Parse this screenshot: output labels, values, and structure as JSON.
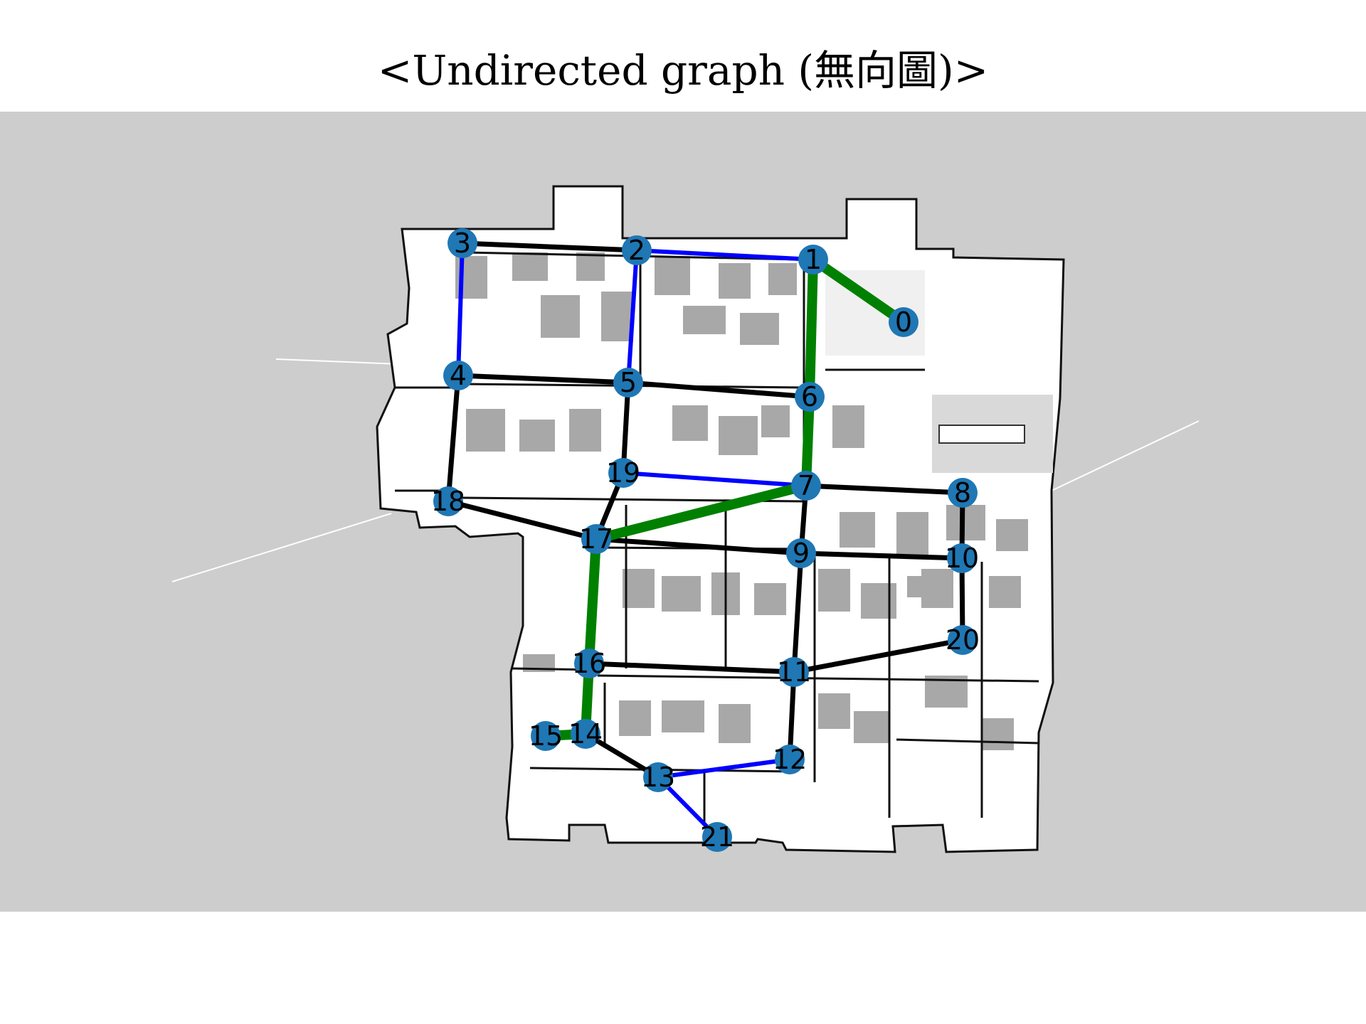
{
  "title": "<Undirected graph (無向圖)>",
  "colors": {
    "background": "#cdcdcd",
    "map_free": "#ffffff",
    "map_obstacle": "#a8a8a8",
    "map_wall": "#000000",
    "node": "#1f77b4",
    "edge_default": "#000000",
    "edge_blue": "#0000ff",
    "edge_path": "#008000"
  },
  "nodes": [
    {
      "id": "0"
    },
    {
      "id": "1"
    },
    {
      "id": "2"
    },
    {
      "id": "3"
    },
    {
      "id": "4"
    },
    {
      "id": "5"
    },
    {
      "id": "6"
    },
    {
      "id": "7"
    },
    {
      "id": "8"
    },
    {
      "id": "9"
    },
    {
      "id": "10"
    },
    {
      "id": "11"
    },
    {
      "id": "12"
    },
    {
      "id": "13"
    },
    {
      "id": "14"
    },
    {
      "id": "15"
    },
    {
      "id": "16"
    },
    {
      "id": "17"
    },
    {
      "id": "18"
    },
    {
      "id": "19"
    },
    {
      "id": "20"
    },
    {
      "id": "21"
    }
  ],
  "edges": [
    {
      "from": "3",
      "to": "2",
      "kind": "default"
    },
    {
      "from": "2",
      "to": "1",
      "kind": "blue"
    },
    {
      "from": "3",
      "to": "4",
      "kind": "blue"
    },
    {
      "from": "2",
      "to": "5",
      "kind": "blue"
    },
    {
      "from": "4",
      "to": "5",
      "kind": "default"
    },
    {
      "from": "5",
      "to": "6",
      "kind": "default"
    },
    {
      "from": "4",
      "to": "18",
      "kind": "default"
    },
    {
      "from": "5",
      "to": "19",
      "kind": "default"
    },
    {
      "from": "19",
      "to": "7",
      "kind": "blue"
    },
    {
      "from": "19",
      "to": "17",
      "kind": "default"
    },
    {
      "from": "18",
      "to": "17",
      "kind": "default"
    },
    {
      "from": "7",
      "to": "8",
      "kind": "default"
    },
    {
      "from": "7",
      "to": "9",
      "kind": "default"
    },
    {
      "from": "17",
      "to": "9",
      "kind": "default"
    },
    {
      "from": "9",
      "to": "10",
      "kind": "default"
    },
    {
      "from": "8",
      "to": "10",
      "kind": "default"
    },
    {
      "from": "10",
      "to": "20",
      "kind": "default"
    },
    {
      "from": "9",
      "to": "11",
      "kind": "default"
    },
    {
      "from": "16",
      "to": "11",
      "kind": "default"
    },
    {
      "from": "11",
      "to": "20",
      "kind": "default"
    },
    {
      "from": "11",
      "to": "12",
      "kind": "default"
    },
    {
      "from": "14",
      "to": "13",
      "kind": "default"
    },
    {
      "from": "13",
      "to": "12",
      "kind": "blue"
    },
    {
      "from": "13",
      "to": "21",
      "kind": "blue"
    },
    {
      "from": "1",
      "to": "0",
      "kind": "path"
    },
    {
      "from": "1",
      "to": "6",
      "kind": "path"
    },
    {
      "from": "6",
      "to": "7",
      "kind": "path"
    },
    {
      "from": "7",
      "to": "17",
      "kind": "path"
    },
    {
      "from": "17",
      "to": "16",
      "kind": "path"
    },
    {
      "from": "16",
      "to": "14",
      "kind": "path"
    },
    {
      "from": "14",
      "to": "15",
      "kind": "path"
    }
  ]
}
